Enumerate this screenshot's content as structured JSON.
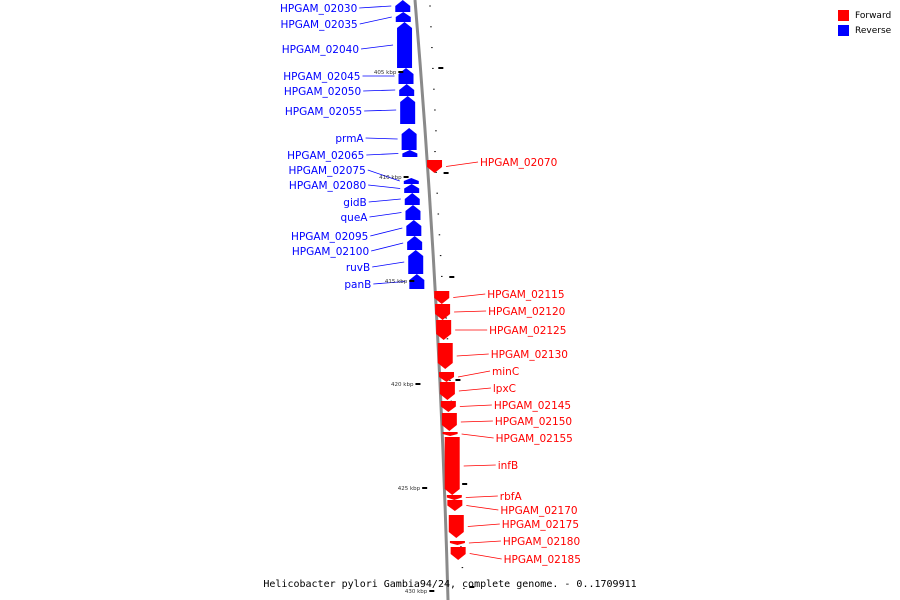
{
  "legend": {
    "forward_label": "Forward",
    "reverse_label": "Reverse",
    "forward_color": "#ff0000",
    "reverse_color": "#0000ff"
  },
  "caption": "Helicobacter pylori Gambia94/24, complete genome. - 0..1709911",
  "axis": {
    "kbp_labels": [
      "405 kbp",
      "410 kbp",
      "415 kbp",
      "420 kbp",
      "425 kbp",
      "430 kbp"
    ]
  },
  "genes": [
    {
      "name": "HPGAM_02030",
      "strand": "reverse"
    },
    {
      "name": "HPGAM_02035",
      "strand": "reverse"
    },
    {
      "name": "HPGAM_02040",
      "strand": "reverse"
    },
    {
      "name": "HPGAM_02045",
      "strand": "reverse"
    },
    {
      "name": "HPGAM_02050",
      "strand": "reverse"
    },
    {
      "name": "HPGAM_02055",
      "strand": "reverse"
    },
    {
      "name": "prmA",
      "strand": "reverse"
    },
    {
      "name": "HPGAM_02065",
      "strand": "reverse"
    },
    {
      "name": "HPGAM_02070",
      "strand": "forward"
    },
    {
      "name": "HPGAM_02075",
      "strand": "reverse"
    },
    {
      "name": "HPGAM_02080",
      "strand": "reverse"
    },
    {
      "name": "gidB",
      "strand": "reverse"
    },
    {
      "name": "queA",
      "strand": "reverse"
    },
    {
      "name": "HPGAM_02095",
      "strand": "reverse"
    },
    {
      "name": "HPGAM_02100",
      "strand": "reverse"
    },
    {
      "name": "ruvB",
      "strand": "reverse"
    },
    {
      "name": "panB",
      "strand": "reverse"
    },
    {
      "name": "HPGAM_02115",
      "strand": "forward"
    },
    {
      "name": "HPGAM_02120",
      "strand": "forward"
    },
    {
      "name": "HPGAM_02125",
      "strand": "forward"
    },
    {
      "name": "HPGAM_02130",
      "strand": "forward"
    },
    {
      "name": "minC",
      "strand": "forward"
    },
    {
      "name": "lpxC",
      "strand": "forward"
    },
    {
      "name": "HPGAM_02145",
      "strand": "forward"
    },
    {
      "name": "HPGAM_02150",
      "strand": "forward"
    },
    {
      "name": "HPGAM_02155",
      "strand": "forward"
    },
    {
      "name": "infB",
      "strand": "forward"
    },
    {
      "name": "rbfA",
      "strand": "forward"
    },
    {
      "name": "HPGAM_02170",
      "strand": "forward"
    },
    {
      "name": "HPGAM_02175",
      "strand": "forward"
    },
    {
      "name": "HPGAM_02180",
      "strand": "forward"
    },
    {
      "name": "HPGAM_02185",
      "strand": "forward"
    }
  ]
}
